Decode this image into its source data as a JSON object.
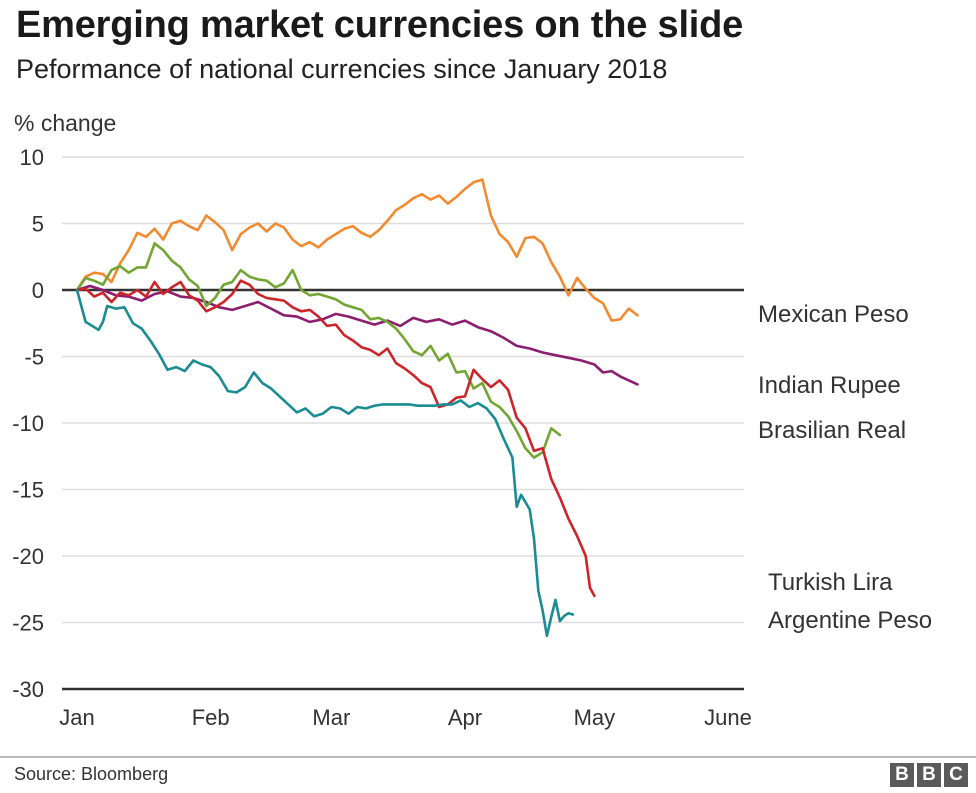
{
  "header": {
    "title": "Emerging market currencies on the slide",
    "subtitle": "Peformance of national currencies since January 2018"
  },
  "footer": {
    "source": "Source: Bloomberg",
    "logo": [
      "B",
      "B",
      "C"
    ]
  },
  "chart_data": {
    "type": "line",
    "ylabel": "% change",
    "ylim": [
      -30,
      10
    ],
    "yticks": [
      10,
      5,
      0,
      -5,
      -10,
      -15,
      -20,
      -25,
      -30
    ],
    "xlim": [
      0,
      151
    ],
    "xticks": [
      {
        "label": "Jan",
        "x": 0
      },
      {
        "label": "Feb",
        "x": 31
      },
      {
        "label": "Mar",
        "x": 59
      },
      {
        "label": "Apr",
        "x": 90
      },
      {
        "label": "May",
        "x": 120
      },
      {
        "label": "June",
        "x": 151
      }
    ],
    "grid": true,
    "legend": "direct labels at right end of lines",
    "series": [
      {
        "name": "Mexican Peso",
        "color": "#f28a30",
        "points": [
          [
            0,
            0
          ],
          [
            2,
            1
          ],
          [
            4,
            1.3
          ],
          [
            6,
            1.2
          ],
          [
            8,
            0.6
          ],
          [
            10,
            2
          ],
          [
            12,
            3
          ],
          [
            14,
            4.3
          ],
          [
            16,
            4
          ],
          [
            18,
            4.6
          ],
          [
            20,
            3.8
          ],
          [
            22,
            5
          ],
          [
            24,
            5.2
          ],
          [
            26,
            4.8
          ],
          [
            28,
            4.5
          ],
          [
            30,
            5.6
          ],
          [
            32,
            5.1
          ],
          [
            34,
            4.5
          ],
          [
            36,
            3
          ],
          [
            38,
            4.2
          ],
          [
            40,
            4.7
          ],
          [
            42,
            5
          ],
          [
            44,
            4.4
          ],
          [
            46,
            5
          ],
          [
            48,
            4.7
          ],
          [
            50,
            3.8
          ],
          [
            52,
            3.3
          ],
          [
            54,
            3.6
          ],
          [
            56,
            3.2
          ],
          [
            58,
            3.8
          ],
          [
            60,
            4.2
          ],
          [
            62,
            4.6
          ],
          [
            64,
            4.8
          ],
          [
            66,
            4.3
          ],
          [
            68,
            4
          ],
          [
            70,
            4.5
          ],
          [
            72,
            5.2
          ],
          [
            74,
            6
          ],
          [
            76,
            6.4
          ],
          [
            78,
            6.9
          ],
          [
            80,
            7.2
          ],
          [
            82,
            6.8
          ],
          [
            84,
            7.1
          ],
          [
            86,
            6.5
          ],
          [
            88,
            7
          ],
          [
            90,
            7.6
          ],
          [
            92,
            8.1
          ],
          [
            94,
            8.3
          ],
          [
            96,
            5.6
          ],
          [
            98,
            4.2
          ],
          [
            100,
            3.6
          ],
          [
            102,
            2.5
          ],
          [
            104,
            3.9
          ],
          [
            106,
            4
          ],
          [
            108,
            3.5
          ],
          [
            110,
            2.1
          ],
          [
            112,
            1
          ],
          [
            114,
            -0.4
          ],
          [
            116,
            0.9
          ],
          [
            118,
            0.1
          ],
          [
            120,
            -0.6
          ],
          [
            122,
            -1
          ],
          [
            124,
            -2.3
          ],
          [
            126,
            -2.2
          ],
          [
            128,
            -1.4
          ],
          [
            130,
            -1.9
          ]
        ]
      },
      {
        "name": "Indian Rupee",
        "color": "#8b1e6f",
        "points": [
          [
            0,
            0
          ],
          [
            3,
            0.3
          ],
          [
            6,
            0
          ],
          [
            9,
            -0.4
          ],
          [
            12,
            -0.5
          ],
          [
            15,
            -0.8
          ],
          [
            18,
            -0.3
          ],
          [
            21,
            -0.1
          ],
          [
            24,
            -0.5
          ],
          [
            27,
            -0.6
          ],
          [
            30,
            -0.9
          ],
          [
            33,
            -1.3
          ],
          [
            36,
            -1.5
          ],
          [
            39,
            -1.2
          ],
          [
            42,
            -0.9
          ],
          [
            45,
            -1.4
          ],
          [
            48,
            -1.9
          ],
          [
            51,
            -2
          ],
          [
            54,
            -2.4
          ],
          [
            57,
            -2.2
          ],
          [
            60,
            -1.8
          ],
          [
            63,
            -2
          ],
          [
            66,
            -2.3
          ],
          [
            69,
            -2.6
          ],
          [
            72,
            -2.3
          ],
          [
            75,
            -2.7
          ],
          [
            78,
            -2.1
          ],
          [
            81,
            -2.4
          ],
          [
            84,
            -2.2
          ],
          [
            87,
            -2.6
          ],
          [
            90,
            -2.3
          ],
          [
            93,
            -2.8
          ],
          [
            96,
            -3.1
          ],
          [
            99,
            -3.6
          ],
          [
            102,
            -4.2
          ],
          [
            105,
            -4.4
          ],
          [
            108,
            -4.7
          ],
          [
            111,
            -4.9
          ],
          [
            114,
            -5.1
          ],
          [
            117,
            -5.3
          ],
          [
            120,
            -5.6
          ],
          [
            122,
            -6.2
          ],
          [
            124,
            -6.1
          ],
          [
            126,
            -6.5
          ],
          [
            128,
            -6.8
          ],
          [
            130,
            -7.1
          ]
        ]
      },
      {
        "name": "Brasilian Real",
        "color": "#73a533",
        "points": [
          [
            0,
            0
          ],
          [
            2,
            0.9
          ],
          [
            4,
            0.7
          ],
          [
            6,
            0.4
          ],
          [
            8,
            1.5
          ],
          [
            10,
            1.8
          ],
          [
            12,
            1.3
          ],
          [
            14,
            1.7
          ],
          [
            16,
            1.7
          ],
          [
            18,
            3.5
          ],
          [
            20,
            3
          ],
          [
            22,
            2.2
          ],
          [
            24,
            1.7
          ],
          [
            26,
            0.8
          ],
          [
            28,
            0.3
          ],
          [
            30,
            -1.2
          ],
          [
            32,
            -0.6
          ],
          [
            34,
            0.4
          ],
          [
            36,
            0.6
          ],
          [
            38,
            1.5
          ],
          [
            40,
            1
          ],
          [
            42,
            0.8
          ],
          [
            44,
            0.7
          ],
          [
            46,
            0.2
          ],
          [
            48,
            0.5
          ],
          [
            50,
            1.5
          ],
          [
            52,
            0
          ],
          [
            54,
            -0.4
          ],
          [
            56,
            -0.3
          ],
          [
            58,
            -0.5
          ],
          [
            60,
            -0.7
          ],
          [
            62,
            -1.1
          ],
          [
            64,
            -1.3
          ],
          [
            66,
            -1.5
          ],
          [
            68,
            -2.2
          ],
          [
            70,
            -2.1
          ],
          [
            72,
            -2.4
          ],
          [
            74,
            -2.9
          ],
          [
            76,
            -3.7
          ],
          [
            78,
            -4.6
          ],
          [
            80,
            -4.9
          ],
          [
            82,
            -4.2
          ],
          [
            84,
            -5.3
          ],
          [
            86,
            -4.8
          ],
          [
            88,
            -6.2
          ],
          [
            90,
            -6.1
          ],
          [
            92,
            -7.4
          ],
          [
            94,
            -7
          ],
          [
            96,
            -8.4
          ],
          [
            98,
            -8.8
          ],
          [
            100,
            -9.5
          ],
          [
            102,
            -10.6
          ],
          [
            104,
            -11.9
          ],
          [
            106,
            -12.6
          ],
          [
            108,
            -12.2
          ],
          [
            110,
            -10.4
          ],
          [
            112,
            -10.9
          ]
        ]
      },
      {
        "name": "Turkish Lira",
        "color": "#cc2529",
        "points": [
          [
            0,
            0
          ],
          [
            2,
            0.1
          ],
          [
            4,
            -0.5
          ],
          [
            6,
            -0.2
          ],
          [
            8,
            -0.9
          ],
          [
            10,
            -0.2
          ],
          [
            12,
            -0.4
          ],
          [
            14,
            0
          ],
          [
            16,
            -0.5
          ],
          [
            18,
            0.6
          ],
          [
            20,
            -0.3
          ],
          [
            22,
            0.2
          ],
          [
            24,
            0.6
          ],
          [
            26,
            -0.4
          ],
          [
            28,
            -0.8
          ],
          [
            30,
            -1.6
          ],
          [
            32,
            -1.3
          ],
          [
            34,
            -0.9
          ],
          [
            36,
            -0.3
          ],
          [
            38,
            0.7
          ],
          [
            40,
            0.4
          ],
          [
            42,
            -0.3
          ],
          [
            44,
            -0.6
          ],
          [
            46,
            -0.7
          ],
          [
            48,
            -0.8
          ],
          [
            50,
            -1.3
          ],
          [
            52,
            -1.6
          ],
          [
            54,
            -1.5
          ],
          [
            56,
            -2
          ],
          [
            58,
            -2.7
          ],
          [
            60,
            -2.6
          ],
          [
            62,
            -3.4
          ],
          [
            64,
            -3.8
          ],
          [
            66,
            -4.3
          ],
          [
            68,
            -4.5
          ],
          [
            70,
            -4.9
          ],
          [
            72,
            -4.4
          ],
          [
            74,
            -5.5
          ],
          [
            76,
            -5.9
          ],
          [
            78,
            -6.4
          ],
          [
            80,
            -7
          ],
          [
            82,
            -7.3
          ],
          [
            84,
            -8.8
          ],
          [
            86,
            -8.6
          ],
          [
            88,
            -8.1
          ],
          [
            90,
            -8
          ],
          [
            92,
            -6
          ],
          [
            94,
            -6.7
          ],
          [
            96,
            -7.3
          ],
          [
            98,
            -6.8
          ],
          [
            100,
            -7.5
          ],
          [
            102,
            -9.6
          ],
          [
            104,
            -10.4
          ],
          [
            106,
            -12.1
          ],
          [
            108,
            -11.9
          ],
          [
            110,
            -14.2
          ],
          [
            112,
            -15.6
          ],
          [
            114,
            -17.2
          ],
          [
            116,
            -18.5
          ],
          [
            118,
            -20
          ],
          [
            119,
            -22.4
          ],
          [
            120,
            -23
          ]
        ]
      },
      {
        "name": "Argentine Peso",
        "color": "#1b8c91",
        "points": [
          [
            0,
            0
          ],
          [
            2,
            -2.4
          ],
          [
            4,
            -2.8
          ],
          [
            5,
            -3
          ],
          [
            6,
            -2.4
          ],
          [
            7,
            -1.2
          ],
          [
            9,
            -1.4
          ],
          [
            11,
            -1.3
          ],
          [
            13,
            -2.5
          ],
          [
            15,
            -2.9
          ],
          [
            17,
            -3.8
          ],
          [
            19,
            -4.8
          ],
          [
            21,
            -6
          ],
          [
            23,
            -5.8
          ],
          [
            25,
            -6.1
          ],
          [
            27,
            -5.3
          ],
          [
            29,
            -5.6
          ],
          [
            31,
            -5.8
          ],
          [
            33,
            -6.5
          ],
          [
            35,
            -7.6
          ],
          [
            37,
            -7.7
          ],
          [
            39,
            -7.3
          ],
          [
            41,
            -6.2
          ],
          [
            43,
            -7
          ],
          [
            45,
            -7.4
          ],
          [
            47,
            -8
          ],
          [
            49,
            -8.6
          ],
          [
            51,
            -9.2
          ],
          [
            53,
            -8.9
          ],
          [
            55,
            -9.5
          ],
          [
            57,
            -9.3
          ],
          [
            59,
            -8.8
          ],
          [
            61,
            -8.9
          ],
          [
            63,
            -9.3
          ],
          [
            65,
            -8.8
          ],
          [
            67,
            -8.9
          ],
          [
            69,
            -8.7
          ],
          [
            71,
            -8.6
          ],
          [
            73,
            -8.6
          ],
          [
            75,
            -8.6
          ],
          [
            77,
            -8.6
          ],
          [
            79,
            -8.7
          ],
          [
            81,
            -8.7
          ],
          [
            83,
            -8.7
          ],
          [
            85,
            -8.6
          ],
          [
            87,
            -8.6
          ],
          [
            89,
            -8.3
          ],
          [
            91,
            -8.8
          ],
          [
            93,
            -8.5
          ],
          [
            95,
            -8.9
          ],
          [
            97,
            -9.7
          ],
          [
            99,
            -11.2
          ],
          [
            101,
            -12.6
          ],
          [
            102,
            -16.3
          ],
          [
            103,
            -15.4
          ],
          [
            105,
            -16.5
          ],
          [
            106,
            -18.7
          ],
          [
            107,
            -22.6
          ],
          [
            108,
            -24.1
          ],
          [
            109,
            -26
          ],
          [
            110,
            -24.6
          ],
          [
            111,
            -23.3
          ],
          [
            112,
            -24.9
          ],
          [
            113,
            -24.5
          ],
          [
            114,
            -24.3
          ],
          [
            115,
            -24.4
          ]
        ]
      }
    ]
  }
}
